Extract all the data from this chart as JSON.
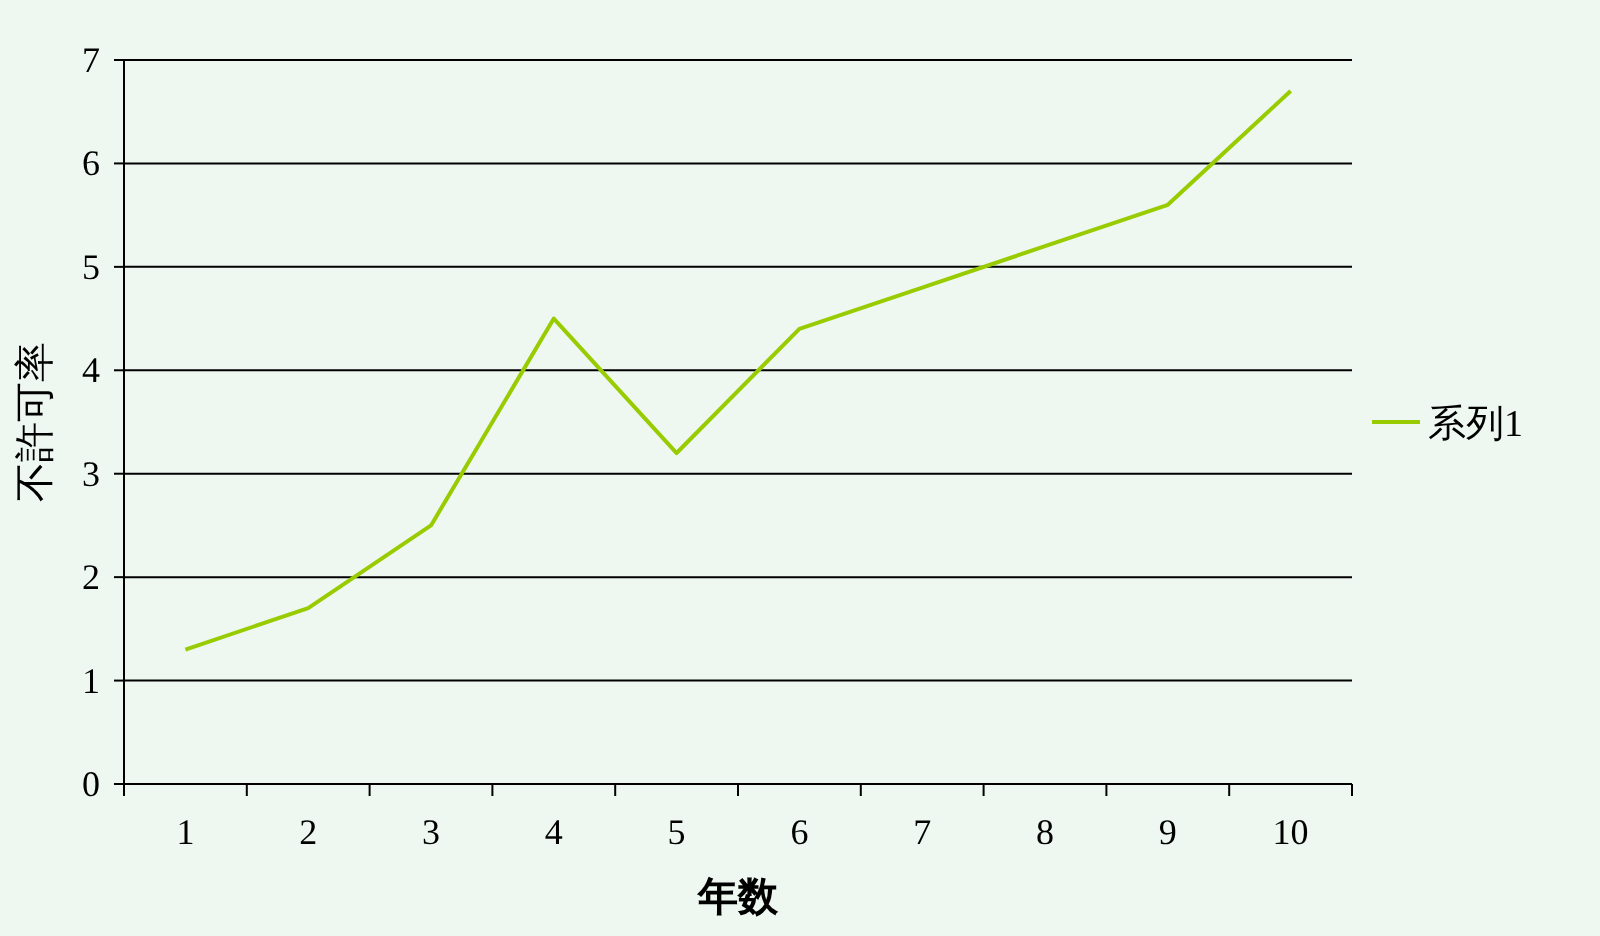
{
  "chart_data": {
    "type": "line",
    "categories": [
      "1",
      "2",
      "3",
      "4",
      "5",
      "6",
      "7",
      "8",
      "9",
      "10"
    ],
    "series": [
      {
        "name": "系列1",
        "color": "#99cc00",
        "values": [
          1.3,
          1.7,
          2.5,
          4.5,
          3.2,
          4.4,
          4.8,
          5.2,
          5.6,
          6.7
        ]
      }
    ],
    "xlabel": "年数",
    "ylabel": "不許可率",
    "ylim": [
      0,
      7
    ],
    "yticks": [
      0,
      1,
      2,
      3,
      4,
      5,
      6,
      7
    ],
    "grid": "y",
    "legend": "right"
  }
}
